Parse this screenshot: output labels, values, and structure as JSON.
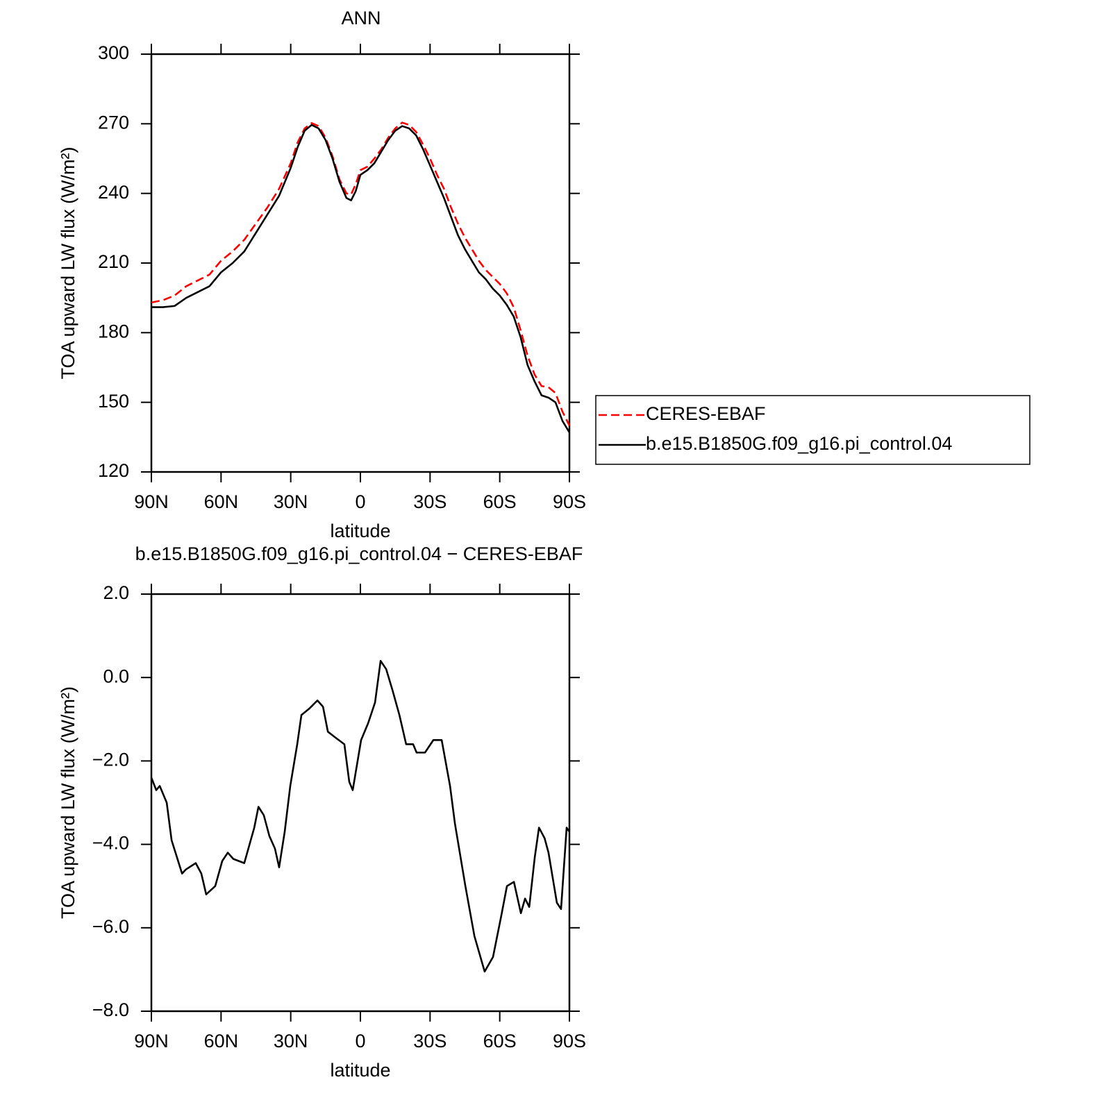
{
  "chart_data": [
    {
      "type": "line",
      "title": "ANN",
      "xlabel": "latitude",
      "ylabel": "TOA upward LW flux (W/m²)",
      "x": [
        90,
        85,
        80,
        75,
        70,
        65,
        60,
        55,
        50,
        45,
        40,
        35,
        30,
        27,
        24,
        21,
        18,
        15,
        12,
        9,
        6,
        4,
        2,
        0,
        -3,
        -6,
        -9,
        -12,
        -15,
        -18,
        -21,
        -24,
        -27,
        -30,
        -33,
        -36,
        -39,
        -42,
        -45,
        -48,
        -51,
        -54,
        -57,
        -60,
        -63,
        -66,
        -69,
        -72,
        -75,
        -78,
        -81,
        -84,
        -87,
        -90
      ],
      "series": [
        {
          "name": "CERES-EBAF",
          "color": "#ff0000",
          "dash": true,
          "values": [
            193,
            194,
            196,
            200,
            202.5,
            205,
            211,
            215,
            220,
            227,
            234,
            242,
            253,
            262,
            268,
            270.3,
            269,
            264,
            256,
            246,
            240,
            239.5,
            244,
            250,
            251.5,
            255,
            259,
            264,
            268,
            270.5,
            269.5,
            266.5,
            261,
            255,
            248,
            242,
            234,
            227,
            221,
            216,
            211,
            207,
            204,
            201,
            197,
            191,
            181,
            170,
            162,
            157,
            156.5,
            154,
            146,
            140
          ]
        },
        {
          "name": "b.e15.B1850G.f09_g16.pi_control.04",
          "color": "#000000",
          "dash": false,
          "values": [
            191,
            191,
            191.5,
            195,
            197.5,
            200,
            206,
            210,
            215,
            223,
            231,
            239,
            251,
            260,
            267,
            269.5,
            268,
            263,
            255,
            245,
            238,
            237,
            241,
            248,
            250,
            253,
            258,
            263,
            267,
            269,
            268,
            265,
            259,
            252,
            245,
            238,
            230,
            222,
            216,
            211,
            206,
            203,
            199,
            196,
            192,
            187,
            178,
            166,
            159,
            153,
            152,
            150,
            142,
            137
          ]
        }
      ],
      "xlim": [
        90,
        -90
      ],
      "xticks": [
        {
          "value": 90,
          "label": "90N"
        },
        {
          "value": 60,
          "label": "60N"
        },
        {
          "value": 30,
          "label": "30N"
        },
        0,
        {
          "value": -30,
          "label": "30S"
        },
        {
          "value": -60,
          "label": "60S"
        },
        {
          "value": -90,
          "label": "90S"
        }
      ],
      "ylim": [
        120,
        300
      ],
      "yticks": [
        120,
        150,
        180,
        210,
        240,
        270,
        300
      ],
      "grid": false,
      "legend": "right"
    },
    {
      "type": "line",
      "title": "b.e15.B1850G.f09_g16.pi_control.04 − CERES-EBAF",
      "xlabel": "latitude",
      "ylabel": "TOA upward LW flux (W/m²)",
      "x": [
        90,
        87.9,
        86.4,
        83.4,
        81.3,
        76.8,
        75.1,
        70.9,
        68.5,
        66.4,
        62.5,
        59.5,
        57.1,
        54.7,
        50,
        45.7,
        43.9,
        41.6,
        39.2,
        36.8,
        35,
        32.6,
        30.2,
        27.2,
        25.4,
        22.1,
        18.5,
        16.1,
        14,
        10.5,
        6.9,
        4.8,
        3.3,
        -0.3,
        -3.3,
        -6.3,
        -8.7,
        -11.1,
        -13.8,
        -16.8,
        -19.7,
        -22.7,
        -24.2,
        -27.8,
        -31.4,
        -35,
        -38.6,
        -40.7,
        -45.2,
        -49.1,
        -53.5,
        -57.1,
        -60.7,
        -63.1,
        -66.1,
        -69.1,
        -70.9,
        -72.7,
        -75.1,
        -76.9,
        -79.3,
        -81,
        -84.6,
        -86.4,
        -88.8,
        -90
      ],
      "series": [
        {
          "color": "#000000",
          "dash": false,
          "values": [
            -2.4,
            -2.7,
            -2.6,
            -3.0,
            -3.9,
            -4.7,
            -4.6,
            -4.45,
            -4.7,
            -5.2,
            -5.0,
            -4.4,
            -4.2,
            -4.35,
            -4.45,
            -3.6,
            -3.1,
            -3.3,
            -3.8,
            -4.1,
            -4.55,
            -3.7,
            -2.6,
            -1.6,
            -0.9,
            -0.75,
            -0.55,
            -0.7,
            -1.3,
            -1.45,
            -1.6,
            -2.5,
            -2.7,
            -1.5,
            -1.1,
            -0.6,
            0.4,
            0.2,
            -0.3,
            -0.9,
            -1.6,
            -1.6,
            -1.8,
            -1.8,
            -1.5,
            -1.5,
            -2.6,
            -3.5,
            -5.0,
            -6.2,
            -7.05,
            -6.7,
            -5.7,
            -5.0,
            -4.9,
            -5.65,
            -5.3,
            -5.5,
            -4.3,
            -3.6,
            -3.85,
            -4.2,
            -5.4,
            -5.55,
            -3.6,
            -3.7
          ]
        }
      ],
      "xlim": [
        90,
        -90
      ],
      "xticks": [
        {
          "value": 90,
          "label": "90N"
        },
        {
          "value": 60,
          "label": "60N"
        },
        {
          "value": 30,
          "label": "30N"
        },
        0,
        {
          "value": -30,
          "label": "30S"
        },
        {
          "value": -60,
          "label": "60S"
        },
        {
          "value": -90,
          "label": "90S"
        }
      ],
      "ylim": [
        -8,
        2
      ],
      "yticks": [
        {
          "value": -8,
          "label": "−8.0"
        },
        {
          "value": -6,
          "label": "−6.0"
        },
        {
          "value": -4,
          "label": "−4.0"
        },
        {
          "value": -2,
          "label": "−2.0"
        },
        {
          "value": 0,
          "label": "0.0"
        },
        {
          "value": 2,
          "label": "2.0"
        }
      ],
      "grid": false
    }
  ]
}
